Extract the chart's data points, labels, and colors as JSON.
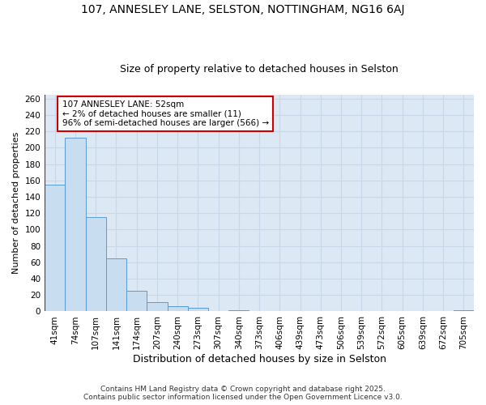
{
  "title1": "107, ANNESLEY LANE, SELSTON, NOTTINGHAM, NG16 6AJ",
  "title2": "Size of property relative to detached houses in Selston",
  "xlabel": "Distribution of detached houses by size in Selston",
  "ylabel": "Number of detached properties",
  "categories": [
    "41sqm",
    "74sqm",
    "107sqm",
    "141sqm",
    "174sqm",
    "207sqm",
    "240sqm",
    "273sqm",
    "307sqm",
    "340sqm",
    "373sqm",
    "406sqm",
    "439sqm",
    "473sqm",
    "506sqm",
    "539sqm",
    "572sqm",
    "605sqm",
    "639sqm",
    "672sqm",
    "705sqm"
  ],
  "values": [
    155,
    212,
    115,
    65,
    25,
    11,
    6,
    4,
    0,
    1,
    0,
    0,
    0,
    0,
    0,
    0,
    0,
    0,
    0,
    0,
    1
  ],
  "bar_color": "#c8ddf0",
  "bar_edge_color": "#5b9bd5",
  "annotation_text": "107 ANNESLEY LANE: 52sqm\n← 2% of detached houses are smaller (11)\n96% of semi-detached houses are larger (566) →",
  "annotation_box_color": "#ffffff",
  "annotation_box_edge_color": "#cc0000",
  "footer": "Contains HM Land Registry data © Crown copyright and database right 2025.\nContains public sector information licensed under the Open Government Licence v3.0.",
  "ylim": [
    0,
    265
  ],
  "yticks": [
    0,
    20,
    40,
    60,
    80,
    100,
    120,
    140,
    160,
    180,
    200,
    220,
    240,
    260
  ],
  "grid_color": "#c8d8e8",
  "background_color": "#dce8f4",
  "title1_fontsize": 10,
  "title2_fontsize": 9,
  "xlabel_fontsize": 9,
  "ylabel_fontsize": 8,
  "tick_fontsize": 7.5,
  "footer_fontsize": 6.5
}
